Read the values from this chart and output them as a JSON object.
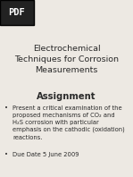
{
  "bg_color": "#ede9e3",
  "pdf_box_color": "#222222",
  "pdf_text": "PDF",
  "title_line1": "Electrochemical",
  "title_line2": "Techniques for Corrosion",
  "title_line3": "Measurements",
  "section_header": "Assignment",
  "bullet1_text": "Present a critical examination of the\nproposed mechanisms of CO₂ and\nH₂S corrosion with particular\nemphasis on the cathodic (oxidation)\nreactions.",
  "bullet2": "Due Date 5 June 2009",
  "title_fontsize": 6.8,
  "header_fontsize": 7.2,
  "body_fontsize": 4.9,
  "pdf_fontsize": 7.5,
  "text_color": "#2a2a2a"
}
